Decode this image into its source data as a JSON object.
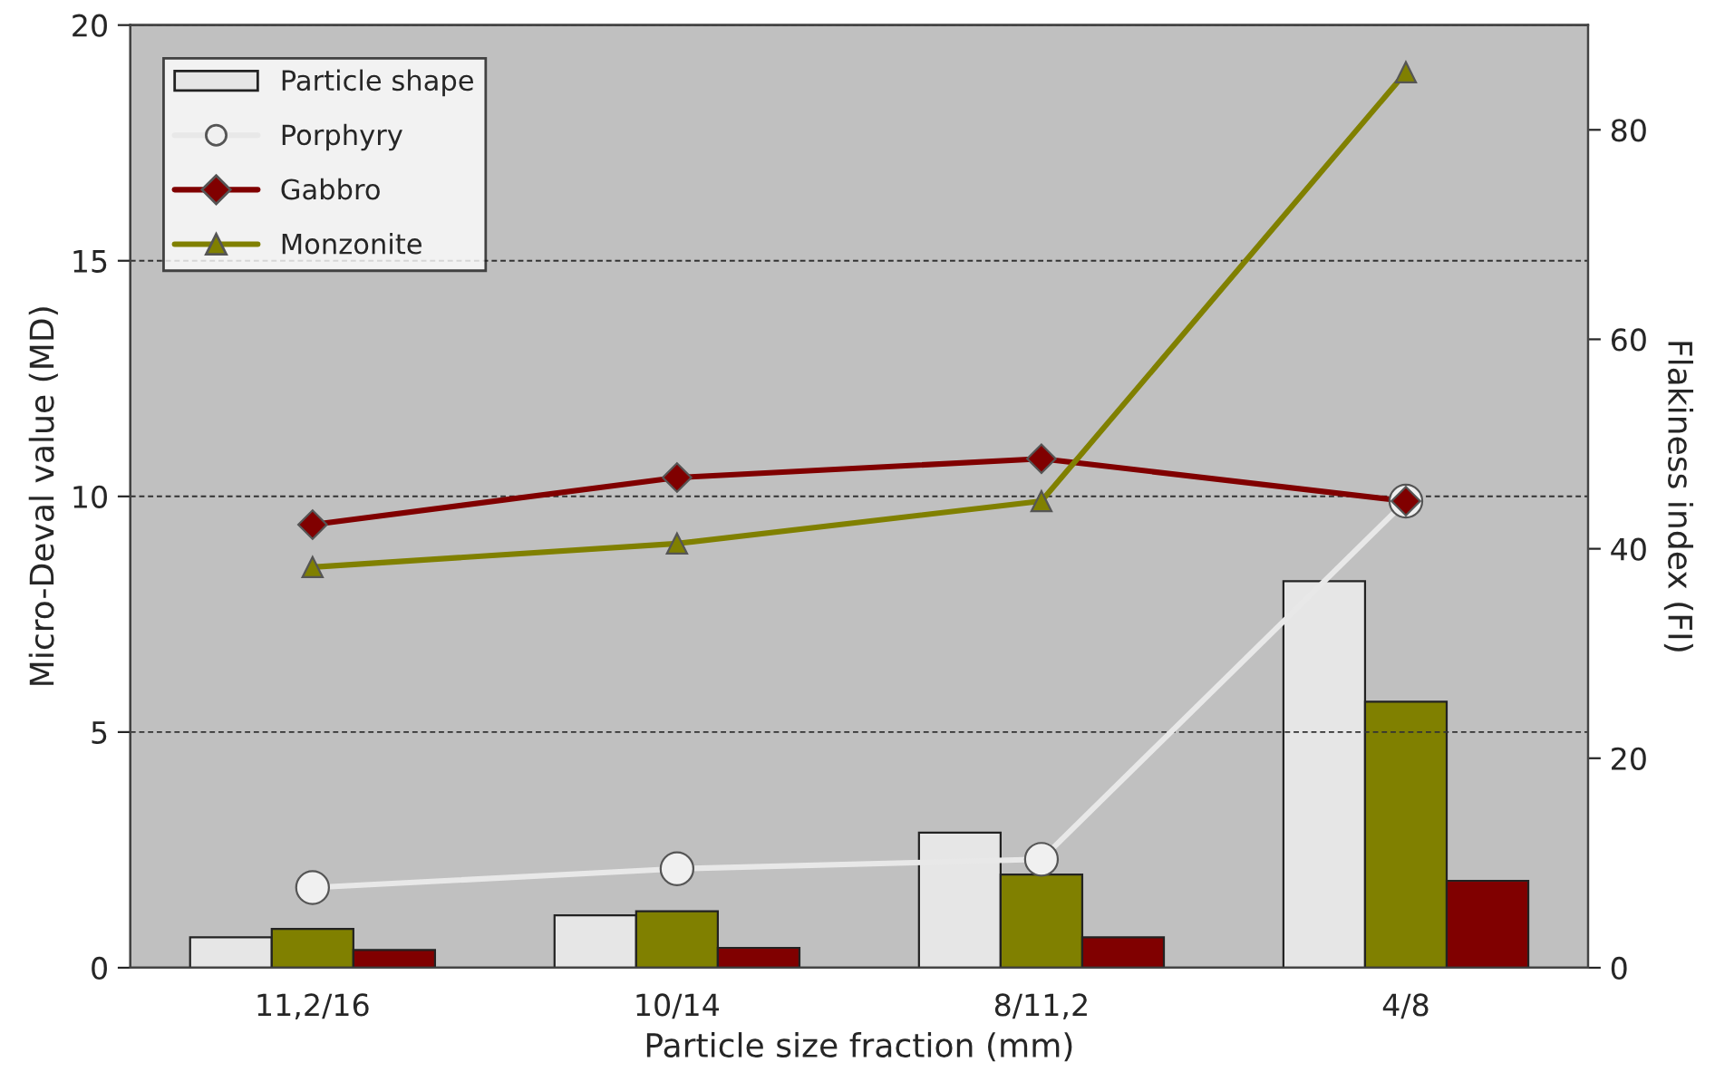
{
  "chart_data": {
    "type": "bar",
    "xlabel": "Particle size fraction (mm)",
    "ylabel": "Micro-Deval value (MD)",
    "y2label": "Flakiness index (FI)",
    "categories": [
      "11,2/16",
      "10/14",
      "8/11,2",
      "4/8"
    ],
    "series": [
      {
        "axis": "y2",
        "name": "Particle shape",
        "color": "#e6e6e6",
        "values": [
          2.9,
          5.0,
          12.9,
          36.9
        ]
      },
      {
        "axis": "y2",
        "color": "#808000",
        "values": [
          3.7,
          5.4,
          8.9,
          25.4
        ]
      },
      {
        "axis": "y2",
        "color": "#800000",
        "values": [
          1.7,
          1.9,
          2.9,
          8.3
        ]
      },
      {
        "type": "line",
        "name": "Porphyry",
        "color": "#e8e8e8",
        "marker": "circle",
        "values": [
          1.7,
          2.1,
          2.3,
          9.9
        ]
      },
      {
        "type": "line",
        "name": "Gabbro",
        "color": "#800000",
        "marker": "diamond",
        "values": [
          9.4,
          10.4,
          10.8,
          9.9
        ]
      },
      {
        "type": "line",
        "name": "Monzonite",
        "color": "#808000",
        "marker": "triangle",
        "values": [
          8.5,
          9.0,
          9.9,
          19.0
        ]
      }
    ],
    "ylim": [
      0,
      20
    ],
    "yticks": [
      0,
      5,
      10,
      15,
      20
    ],
    "y2lim": [
      0,
      90
    ],
    "y2ticks": [
      0,
      20,
      40,
      60,
      80
    ],
    "grid": "y",
    "legend": "top left"
  }
}
